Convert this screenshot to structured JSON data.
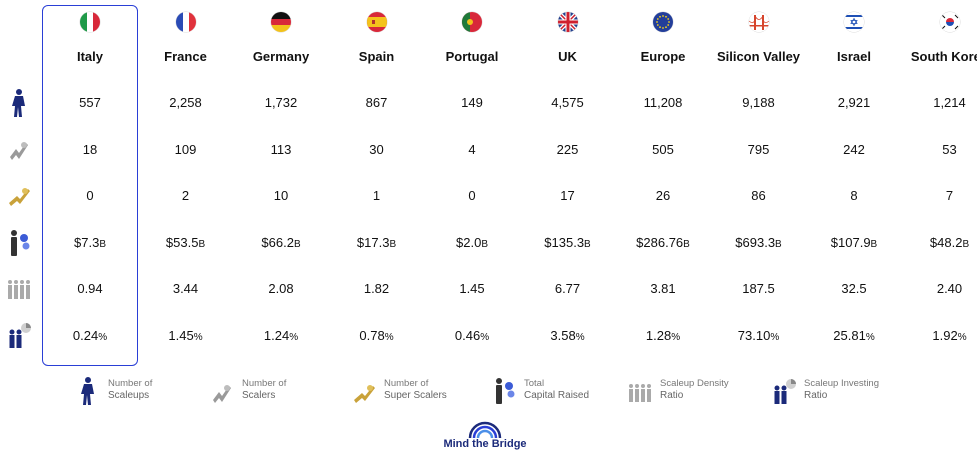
{
  "countries": [
    {
      "name": "Italy",
      "flag": "italy-flag",
      "scaleups": "557",
      "scalers": "18",
      "super_scalers": "0",
      "capital_value": "$7.3",
      "capital_unit": "B",
      "density": "0.94",
      "investing_value": "0.24",
      "investing_unit": "%"
    },
    {
      "name": "France",
      "flag": "france-flag",
      "scaleups": "2,258",
      "scalers": "109",
      "super_scalers": "2",
      "capital_value": "$53.5",
      "capital_unit": "B",
      "density": "3.44",
      "investing_value": "1.45",
      "investing_unit": "%"
    },
    {
      "name": "Germany",
      "flag": "germany-flag",
      "scaleups": "1,732",
      "scalers": "113",
      "super_scalers": "10",
      "capital_value": "$66.2",
      "capital_unit": "B",
      "density": "2.08",
      "investing_value": "1.24",
      "investing_unit": "%"
    },
    {
      "name": "Spain",
      "flag": "spain-flag",
      "scaleups": "867",
      "scalers": "30",
      "super_scalers": "1",
      "capital_value": "$17.3",
      "capital_unit": "B",
      "density": "1.82",
      "investing_value": "0.78",
      "investing_unit": "%"
    },
    {
      "name": "Portugal",
      "flag": "portugal-flag",
      "scaleups": "149",
      "scalers": "4",
      "super_scalers": "0",
      "capital_value": "$2.0",
      "capital_unit": "B",
      "density": "1.45",
      "investing_value": "0.46",
      "investing_unit": "%"
    },
    {
      "name": "UK",
      "flag": "uk-flag",
      "scaleups": "4,575",
      "scalers": "225",
      "super_scalers": "17",
      "capital_value": "$135.3",
      "capital_unit": "B",
      "density": "6.77",
      "investing_value": "3.58",
      "investing_unit": "%"
    },
    {
      "name": "Europe",
      "flag": "eu-flag",
      "scaleups": "11,208",
      "scalers": "505",
      "super_scalers": "26",
      "capital_value": "$286.76",
      "capital_unit": "B",
      "density": "3.81",
      "investing_value": "1.28",
      "investing_unit": "%"
    },
    {
      "name": "Silicon Valley",
      "flag": "golden-gate-icon",
      "scaleups": "9,188",
      "scalers": "795",
      "super_scalers": "86",
      "capital_value": "$693.3",
      "capital_unit": "B",
      "density": "187.5",
      "investing_value": "73.10",
      "investing_unit": "%"
    },
    {
      "name": "Israel",
      "flag": "israel-flag",
      "scaleups": "2,921",
      "scalers": "242",
      "super_scalers": "8",
      "capital_value": "$107.9",
      "capital_unit": "B",
      "density": "32.5",
      "investing_value": "25.81",
      "investing_unit": "%"
    },
    {
      "name": "South Korea",
      "flag": "south-korea-flag",
      "scaleups": "1,214",
      "scalers": "53",
      "super_scalers": "7",
      "capital_value": "$48.2",
      "capital_unit": "B",
      "density": "2.40",
      "investing_value": "1.92",
      "investing_unit": "%"
    }
  ],
  "legend": [
    {
      "icon": "person-icon",
      "line1": "Number of",
      "line2": "Scaleups"
    },
    {
      "icon": "scaler-icon",
      "line1": "Number of",
      "line2": "Scalers"
    },
    {
      "icon": "super-scaler-icon",
      "line1": "Number of",
      "line2": "Super Scalers"
    },
    {
      "icon": "capital-icon",
      "line1": "Total",
      "line2": "Capital Raised"
    },
    {
      "icon": "density-icon",
      "line1": "Scaleup Density",
      "line2": "Ratio"
    },
    {
      "icon": "investing-icon",
      "line1": "Scaleup Investing",
      "line2": "Ratio"
    }
  ],
  "logo": {
    "text": "Mind the Bridge"
  },
  "colors": {
    "highlight": "#2a3fd6",
    "logo": "#1b2a7a"
  }
}
